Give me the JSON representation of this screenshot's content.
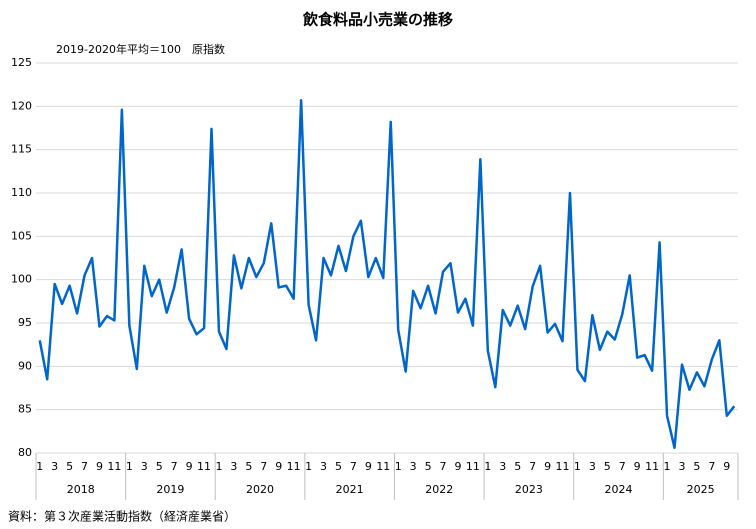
{
  "chart_data": {
    "type": "line",
    "title": "飲食料品小売業の推移",
    "subtitle": "2019-2020年平均＝100　原指数",
    "source": "資料：第３次産業活動指数（経済産業省）",
    "years": [
      "2018",
      "2019",
      "2020",
      "2021",
      "2022",
      "2023",
      "2024",
      "2025"
    ],
    "categories": [
      "1",
      null,
      "3",
      null,
      "5",
      null,
      "7",
      null,
      "9",
      null,
      "11",
      null,
      "1",
      null,
      "3",
      null,
      "5",
      null,
      "7",
      null,
      "9",
      null,
      "11",
      null,
      "1",
      null,
      "3",
      null,
      "5",
      null,
      "7",
      null,
      "9",
      null,
      "11",
      null,
      "1",
      null,
      "3",
      null,
      "5",
      null,
      "7",
      null,
      "9",
      null,
      "11",
      null,
      "1",
      null,
      "3",
      null,
      "5",
      null,
      "7",
      null,
      "9",
      null,
      "11",
      null,
      "1",
      null,
      "3",
      null,
      "5",
      null,
      "7",
      null,
      "9",
      null,
      "11",
      null,
      "1",
      null,
      "3",
      null,
      "5",
      null,
      "7",
      null,
      "9",
      null,
      "11",
      null,
      "1",
      null,
      "3",
      null,
      "5",
      null,
      "7",
      null,
      "9",
      null
    ],
    "series": [
      {
        "name": "飲食料品小売業",
        "color": "#0066cc",
        "values": [
          93.0,
          88.5,
          99.5,
          97.2,
          99.3,
          96.1,
          100.5,
          102.5,
          94.6,
          95.8,
          95.3,
          119.6,
          94.7,
          89.7,
          101.6,
          98.1,
          100.0,
          96.2,
          99.1,
          103.5,
          95.5,
          93.7,
          94.4,
          117.4,
          94.0,
          92.0,
          102.8,
          99.0,
          102.5,
          100.3,
          101.9,
          106.5,
          99.1,
          99.3,
          97.8,
          120.7,
          97.1,
          93.0,
          102.5,
          100.5,
          103.9,
          101.0,
          105.0,
          106.8,
          100.3,
          102.5,
          100.2,
          118.2,
          94.2,
          89.4,
          98.7,
          96.7,
          99.3,
          96.1,
          100.9,
          101.9,
          96.2,
          97.8,
          94.7,
          113.9,
          91.8,
          87.6,
          96.5,
          94.7,
          97.0,
          94.3,
          99.2,
          101.6,
          93.9,
          94.9,
          92.9,
          110.0,
          89.6,
          88.3,
          95.9,
          91.9,
          94.0,
          93.1,
          96.0,
          100.5,
          91.0,
          91.3,
          89.5,
          104.3,
          84.3,
          80.6,
          90.2,
          87.3,
          89.3,
          87.7,
          90.8,
          93.0,
          84.3,
          85.4
        ]
      }
    ],
    "ylim": [
      80,
      125
    ],
    "yticks": [
      80,
      85,
      90,
      95,
      100,
      105,
      110,
      115,
      120,
      125
    ],
    "grid": true
  }
}
